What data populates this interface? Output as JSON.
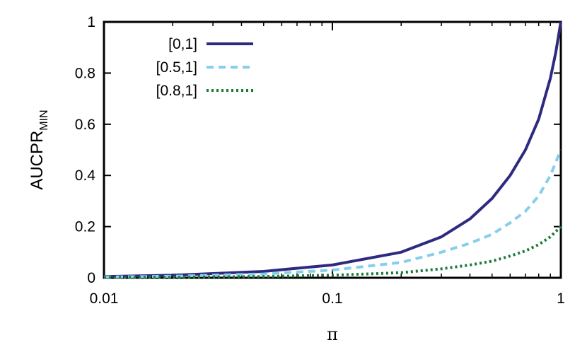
{
  "chart_data": {
    "type": "line",
    "xscale": "log",
    "xlim": [
      0.01,
      1
    ],
    "ylim": [
      0,
      1
    ],
    "xlabel": "π",
    "ylabel": "AUCPR",
    "ylabel_subscript": "MIN",
    "x_ticks": [
      "0.01",
      "0.1",
      "1"
    ],
    "y_ticks": [
      "0",
      "0.2",
      "0.4",
      "0.6",
      "0.8",
      "1"
    ],
    "grid": false,
    "legend_position": "top-left",
    "series": [
      {
        "name": "[0,1]",
        "color": "#2e2a7f",
        "style": "solid",
        "points": [
          [
            0.01,
            0.005
          ],
          [
            0.02,
            0.01
          ],
          [
            0.05,
            0.025
          ],
          [
            0.1,
            0.05
          ],
          [
            0.2,
            0.1
          ],
          [
            0.3,
            0.16
          ],
          [
            0.4,
            0.23
          ],
          [
            0.5,
            0.31
          ],
          [
            0.6,
            0.4
          ],
          [
            0.7,
            0.5
          ],
          [
            0.8,
            0.62
          ],
          [
            0.9,
            0.78
          ],
          [
            0.95,
            0.88
          ],
          [
            1.0,
            1.0
          ]
        ]
      },
      {
        "name": "[0.5,1]",
        "color": "#87ceeb",
        "style": "dashed",
        "points": [
          [
            0.01,
            0.003
          ],
          [
            0.02,
            0.006
          ],
          [
            0.05,
            0.015
          ],
          [
            0.1,
            0.03
          ],
          [
            0.2,
            0.06
          ],
          [
            0.3,
            0.1
          ],
          [
            0.4,
            0.135
          ],
          [
            0.5,
            0.17
          ],
          [
            0.6,
            0.215
          ],
          [
            0.7,
            0.26
          ],
          [
            0.8,
            0.32
          ],
          [
            0.9,
            0.4
          ],
          [
            1.0,
            0.5
          ]
        ]
      },
      {
        "name": "[0.8,1]",
        "color": "#1a7a3a",
        "style": "dotted",
        "points": [
          [
            0.01,
            0.001
          ],
          [
            0.02,
            0.002
          ],
          [
            0.05,
            0.005
          ],
          [
            0.1,
            0.01
          ],
          [
            0.2,
            0.02
          ],
          [
            0.3,
            0.035
          ],
          [
            0.4,
            0.05
          ],
          [
            0.5,
            0.065
          ],
          [
            0.6,
            0.085
          ],
          [
            0.7,
            0.105
          ],
          [
            0.8,
            0.13
          ],
          [
            0.9,
            0.16
          ],
          [
            1.0,
            0.2
          ]
        ]
      }
    ]
  }
}
